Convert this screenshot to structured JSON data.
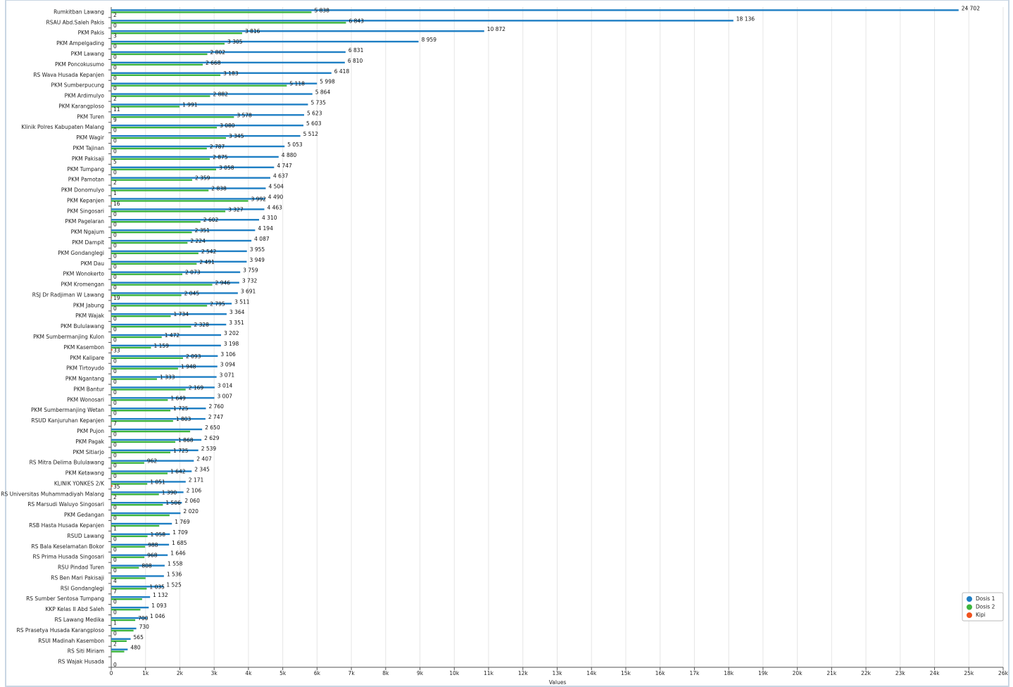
{
  "chart_data": {
    "type": "barh",
    "x_label": "Values",
    "legend": "bottom-right",
    "categories": [
      "Rumkitban Lawang",
      "RSAU Abd.Saleh Pakis",
      "PKM Pakis",
      "PKM Ampelgading",
      "PKM Lawang",
      "PKM Poncokusumo",
      "RS Wava Husada Kepanjen",
      "PKM Sumberpucung",
      "PKM Ardimulyo",
      "PKM Karangploso",
      "PKM Turen",
      "Klinik Polres Kabupaten Malang",
      "PKM Wagir",
      "PKM Tajinan",
      "PKM Pakisaji",
      "PKM Tumpang",
      "PKM Pamotan",
      "PKM Donomulyo",
      "PKM Kepanjen",
      "PKM Singosari",
      "PKM Pagelaran",
      "PKM Ngajum",
      "PKM Dampit",
      "PKM Gondanglegi",
      "PKM Dau",
      "PKM Wonokerto",
      "PKM Kromengan",
      "RSJ Dr Radjiman W Lawang",
      "PKM Jabung",
      "PKM Wajak",
      "PKM Bululawang",
      "PKM Sumbermanjing Kulon",
      "PKM Kasembon",
      "PKM Kalipare",
      "PKM Tirtoyudo",
      "PKM Ngantang",
      "PKM Bantur",
      "PKM Wonosari",
      "PKM Sumbermanjing Wetan",
      "RSUD Kanjuruhan Kepanjen",
      "PKM Pujon",
      "PKM Pagak",
      "PKM Sitiarjo",
      "RS Mitra Delima Bululawang",
      "PKM Ketawang",
      "KLINIK YONKES 2/K",
      "RS Universitas Muhammadiyah Malang",
      "RS Marsudi Waluyo Singosari",
      "PKM Gedangan",
      "RSB Hasta Husada Kepanjen",
      "RSUD Lawang",
      "RS Bala Keselamatan Bokor",
      "RS Prima Husada Singosari",
      "RSU Pindad Turen",
      "RS Ben Mari Pakisaji",
      "RSI Gondanglegi",
      "RS Sumber Sentosa Tumpang",
      "KKP Kelas II Abd Saleh",
      "RS Lawang Medika",
      "RS Prasetya Husada Karangploso",
      "RSUI Madinah Kasembon",
      "RS Siti Miriam",
      "RS Wajak Husada"
    ],
    "series": [
      {
        "name": "Dosis 1",
        "color": "#1f7fc4",
        "values": [
          24702,
          18136,
          10872,
          8959,
          6831,
          6810,
          6418,
          5998,
          5864,
          5735,
          5623,
          5603,
          5512,
          5053,
          4880,
          4747,
          4637,
          4504,
          4490,
          4463,
          4310,
          4194,
          4087,
          3955,
          3949,
          3759,
          3732,
          3691,
          3511,
          3364,
          3351,
          3202,
          3198,
          3106,
          3094,
          3071,
          3014,
          3007,
          2760,
          2747,
          2650,
          2629,
          2539,
          2407,
          2345,
          2171,
          2106,
          2060,
          2020,
          1769,
          1709,
          1685,
          1646,
          1558,
          1536,
          1525,
          1132,
          1093,
          1046,
          730,
          565,
          480,
          0
        ],
        "value_labels": [
          "24 702",
          "18 136",
          "10 872",
          "8 959",
          "6 831",
          "6 810",
          "6 418",
          "5 998",
          "5 864",
          "5 735",
          "5 623",
          "5 603",
          "5 512",
          "5 053",
          "4 880",
          "4 747",
          "4 637",
          "4 504",
          "4 490",
          "4 463",
          "4 310",
          "4 194",
          "4 087",
          "3 955",
          "3 949",
          "3 759",
          "3 732",
          "3 691",
          "3 511",
          "3 364",
          "3 351",
          "3 202",
          "3 198",
          "3 106",
          "3 094",
          "3 071",
          "3 014",
          "3 007",
          "2 760",
          "2 747",
          "2 650",
          "2 629",
          "2 539",
          "2 407",
          "2 345",
          "2 171",
          "2 106",
          "2 060",
          "2 020",
          "1 769",
          "1 709",
          "1 685",
          "1 646",
          "1 558",
          "1 536",
          "1 525",
          "1 132",
          "1 093",
          "1 046",
          "730",
          "565",
          "480",
          null
        ]
      },
      {
        "name": "Dosis 2",
        "color": "#3db53d",
        "values": [
          5838,
          6843,
          3816,
          3305,
          2802,
          2668,
          3183,
          5118,
          2882,
          1991,
          3578,
          3080,
          3345,
          2787,
          2875,
          3058,
          2359,
          2838,
          3992,
          3327,
          2602,
          2351,
          2224,
          2542,
          2491,
          2073,
          2946,
          2045,
          2795,
          1734,
          2328,
          1472,
          1159,
          2093,
          1948,
          1333,
          2169,
          1649,
          1725,
          1803,
          2300,
          1868,
          1725,
          962,
          1642,
          1051,
          1390,
          1506,
          1700,
          1400,
          1058,
          988,
          968,
          808,
          1000,
          1035,
          900,
          850,
          700,
          650,
          450,
          380,
          0
        ],
        "value_labels": [
          "5 838",
          "6 843",
          "3 816",
          "3 305",
          "2 802",
          "2 668",
          "3 183",
          "5 118",
          "2 882",
          "1 991",
          "3 578",
          "3 080",
          "3 345",
          "2 787",
          "2 875",
          "3 058",
          "2 359",
          "2 838",
          "3 992",
          "3 327",
          "2 602",
          "2 351",
          "2 224",
          "2 542",
          "2 491",
          "2 073",
          "2 946",
          "2 045",
          "2 795",
          "1 734",
          "2 328",
          "1 472",
          "1 159",
          "2 093",
          "1 948",
          "1 333",
          "2 169",
          "1 649",
          "1 725",
          "1 803",
          null,
          "1 868",
          "1 725",
          "962",
          "1 642",
          "1 051",
          "1 390",
          "1 506",
          null,
          null,
          "1 058",
          "988",
          "968",
          "808",
          null,
          "1 035",
          null,
          null,
          "700",
          null,
          null,
          null,
          null
        ]
      },
      {
        "name": "Kipi",
        "color": "#f0521e",
        "values": [
          2,
          0,
          3,
          0,
          0,
          0,
          0,
          0,
          2,
          11,
          9,
          0,
          0,
          0,
          5,
          0,
          2,
          1,
          16,
          0,
          0,
          0,
          0,
          0,
          0,
          0,
          0,
          19,
          0,
          0,
          0,
          0,
          33,
          0,
          0,
          0,
          0,
          0,
          0,
          7,
          0,
          0,
          0,
          0,
          0,
          35,
          2,
          0,
          0,
          1,
          0,
          0,
          0,
          0,
          4,
          7,
          0,
          0,
          1,
          0,
          2,
          0,
          0
        ],
        "value_labels": [
          "2",
          "0",
          "3",
          "0",
          "0",
          "0",
          "0",
          "0",
          "2",
          "11",
          "9",
          "0",
          "0",
          "0",
          "5",
          "0",
          "2",
          "1",
          "16",
          "0",
          "0",
          "0",
          "0",
          "0",
          "0",
          "0",
          "0",
          "19",
          "0",
          "0",
          "0",
          "0",
          "33",
          "0",
          "0",
          "0",
          "0",
          "0",
          "0",
          "7",
          "0",
          "0",
          "0",
          "0",
          "0",
          "35",
          "2",
          "0",
          "0",
          "1",
          "0",
          "0",
          "0",
          "0",
          "4",
          "7",
          "0",
          "0",
          "1",
          "0",
          "2",
          null,
          "0"
        ]
      }
    ],
    "xlim": [
      0,
      26000
    ],
    "xticks": [
      0,
      {
        "value": 1000,
        "label": "1k"
      },
      {
        "value": 2000,
        "label": "2k"
      },
      {
        "value": 3000,
        "label": "3k"
      },
      {
        "value": 4000,
        "label": "4k"
      },
      {
        "value": 5000,
        "label": "5k"
      },
      {
        "value": 6000,
        "label": "6k"
      },
      {
        "value": 7000,
        "label": "7k"
      },
      {
        "value": 8000,
        "label": "8k"
      },
      {
        "value": 9000,
        "label": "9k"
      },
      {
        "value": 10000,
        "label": "10k"
      },
      {
        "value": 11000,
        "label": "11k"
      },
      {
        "value": 12000,
        "label": "12k"
      },
      {
        "value": 13000,
        "label": "13k"
      },
      {
        "value": 14000,
        "label": "14k"
      },
      {
        "value": 15000,
        "label": "15k"
      },
      {
        "value": 16000,
        "label": "16k"
      },
      {
        "value": 17000,
        "label": "17k"
      },
      {
        "value": 18000,
        "label": "18k"
      },
      {
        "value": 19000,
        "label": "19k"
      },
      {
        "value": 20000,
        "label": "20k"
      },
      {
        "value": 21000,
        "label": "21k"
      },
      {
        "value": 22000,
        "label": "22k"
      },
      {
        "value": 23000,
        "label": "23k"
      },
      {
        "value": 24000,
        "label": "24k"
      },
      {
        "value": 25000,
        "label": "25k"
      },
      {
        "value": 26000,
        "label": "26k"
      }
    ],
    "grid": true
  }
}
